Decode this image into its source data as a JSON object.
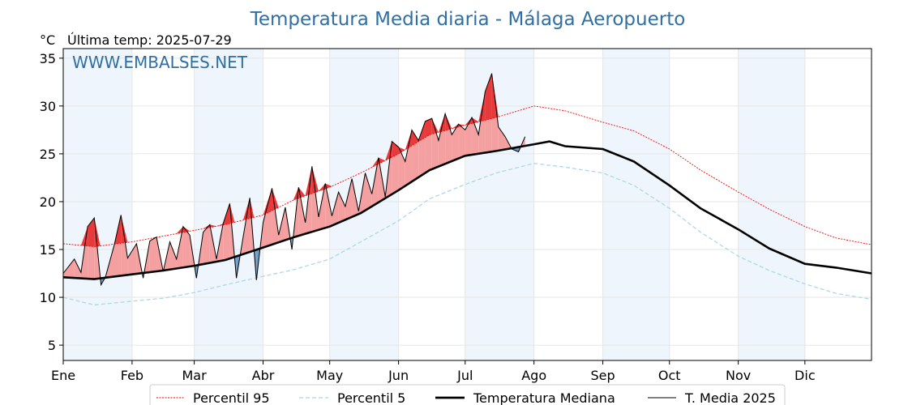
{
  "chart_data": {
    "type": "line",
    "title": "Temperatura Media diaria - Málaga Aeropuerto",
    "unit_label": "°C",
    "last_temp_label": "Última temp: 2025-07-29",
    "watermark": "WWW.EMBALSES.NET",
    "months": [
      "Ene",
      "Feb",
      "Mar",
      "Abr",
      "May",
      "Jun",
      "Jul",
      "Ago",
      "Sep",
      "Oct",
      "Nov",
      "Dic"
    ],
    "yticks": [
      5,
      10,
      15,
      20,
      25,
      30,
      35
    ],
    "ylim": [
      3.4,
      36.0
    ],
    "xlim_days": [
      1,
      365
    ],
    "grid": true,
    "legend_position": "bottom",
    "colors": {
      "p95": "#ff0000",
      "p5": "#add8e6",
      "median": "#000000",
      "media2025": "#000000",
      "above_fill": "#f4a0a0",
      "above_extreme": "#e83a3a",
      "below_fill": "#6f9cc4",
      "band_shade": "#eef5fc",
      "title": "#2f6fa3"
    },
    "series": [
      {
        "name": "Percentil 95",
        "key": "p95",
        "x": [
          1,
          15,
          32,
          46,
          60,
          74,
          91,
          105,
          121,
          135,
          152,
          166,
          182,
          196,
          213,
          227,
          244,
          258,
          274,
          288,
          305,
          319,
          335,
          349,
          365
        ],
        "y": [
          15.6,
          15.3,
          15.8,
          16.4,
          17.0,
          17.6,
          18.6,
          20.2,
          21.5,
          23.0,
          25.0,
          27.0,
          28.0,
          28.8,
          30.0,
          29.5,
          28.3,
          27.4,
          25.5,
          23.3,
          21.0,
          19.2,
          17.4,
          16.2,
          15.5
        ]
      },
      {
        "name": "Percentil 5",
        "key": "p5",
        "x": [
          1,
          15,
          32,
          46,
          60,
          74,
          91,
          105,
          121,
          135,
          152,
          166,
          182,
          196,
          213,
          227,
          244,
          258,
          274,
          288,
          305,
          319,
          335,
          349,
          365
        ],
        "y": [
          10.0,
          9.2,
          9.6,
          9.9,
          10.5,
          11.3,
          12.2,
          12.9,
          14.0,
          15.8,
          18.0,
          20.3,
          21.8,
          23.0,
          24.0,
          23.6,
          23.0,
          21.7,
          19.3,
          16.8,
          14.3,
          12.8,
          11.4,
          10.4,
          9.8
        ]
      },
      {
        "name": "Temperatura Mediana",
        "key": "median",
        "x": [
          1,
          15,
          32,
          46,
          60,
          74,
          91,
          105,
          121,
          135,
          152,
          166,
          182,
          196,
          213,
          220,
          227,
          244,
          258,
          274,
          288,
          305,
          319,
          335,
          349,
          365
        ],
        "y": [
          12.1,
          11.9,
          12.4,
          12.8,
          13.3,
          13.9,
          15.2,
          16.3,
          17.4,
          18.8,
          21.2,
          23.3,
          24.8,
          25.3,
          26.0,
          26.3,
          25.8,
          25.5,
          24.2,
          21.7,
          19.3,
          17.1,
          15.1,
          13.5,
          13.1,
          12.5
        ]
      },
      {
        "name": "T. Media 2025",
        "key": "media2025",
        "x": [
          1,
          6,
          9,
          12,
          15,
          18,
          20,
          24,
          27,
          30,
          34,
          37,
          40,
          43,
          46,
          49,
          52,
          55,
          58,
          61,
          64,
          67,
          70,
          73,
          76,
          79,
          82,
          85,
          88,
          91,
          95,
          98,
          101,
          104,
          107,
          110,
          113,
          116,
          119,
          122,
          125,
          128,
          131,
          134,
          137,
          140,
          143,
          146,
          149,
          152,
          155,
          158,
          161,
          164,
          167,
          170,
          173,
          176,
          179,
          182,
          185,
          188,
          191,
          194,
          197,
          200,
          203,
          206,
          209
        ],
        "y": [
          12.5,
          14.0,
          12.6,
          17.4,
          18.3,
          11.3,
          12.1,
          15.5,
          18.6,
          14.1,
          15.6,
          12.0,
          15.9,
          16.3,
          12.7,
          15.8,
          14.0,
          17.4,
          16.5,
          12.0,
          16.8,
          17.6,
          14.0,
          17.7,
          19.8,
          12.0,
          16.3,
          20.4,
          11.8,
          17.8,
          21.4,
          16.5,
          19.4,
          15.0,
          21.5,
          17.8,
          23.7,
          18.4,
          21.9,
          18.5,
          21.0,
          19.5,
          22.4,
          19.0,
          23.0,
          20.8,
          24.6,
          20.5,
          26.3,
          25.7,
          24.2,
          27.5,
          26.4,
          28.4,
          28.7,
          26.4,
          29.2,
          27.0,
          28.1,
          27.5,
          28.8,
          27.0,
          31.5,
          33.4,
          27.8,
          26.8,
          25.5,
          25.2,
          26.8
        ]
      }
    ]
  },
  "legend": {
    "p95": "Percentil 95",
    "p5": "Percentil 5",
    "median": "Temperatura Mediana",
    "media2025": "T. Media 2025"
  }
}
